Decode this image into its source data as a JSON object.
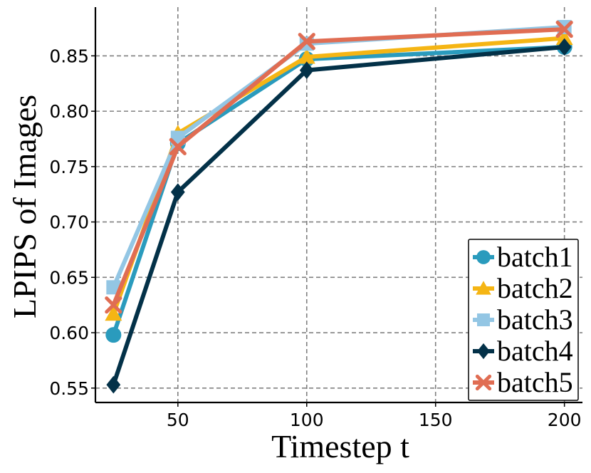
{
  "chart_data": {
    "type": "line",
    "xlabel": "Timestep t",
    "ylabel": "LPIPS of Images",
    "xlim": [
      18,
      207
    ],
    "ylim": [
      0.537,
      0.894
    ],
    "xticks": [
      50,
      100,
      150,
      200
    ],
    "yticks": [
      0.55,
      0.6,
      0.65,
      0.7,
      0.75,
      0.8,
      0.85
    ],
    "ytick_labels": [
      "0.55",
      "0.60",
      "0.65",
      "0.70",
      "0.75",
      "0.80",
      "0.85"
    ],
    "grid": true,
    "legend_position": "lower-right",
    "x": [
      25,
      50,
      100,
      200
    ],
    "series": [
      {
        "name": "batch1",
        "color": "#2a9bbd",
        "marker": "circle",
        "values": [
          0.598,
          0.771,
          0.847,
          0.858
        ]
      },
      {
        "name": "batch2",
        "color": "#f5b514",
        "marker": "triangle",
        "values": [
          0.617,
          0.78,
          0.849,
          0.866
        ]
      },
      {
        "name": "batch3",
        "color": "#93c6e4",
        "marker": "square",
        "values": [
          0.641,
          0.776,
          0.861,
          0.876
        ]
      },
      {
        "name": "batch4",
        "color": "#033148",
        "marker": "diamond",
        "values": [
          0.553,
          0.727,
          0.837,
          0.858
        ]
      },
      {
        "name": "batch5",
        "color": "#e06d53",
        "marker": "x",
        "values": [
          0.625,
          0.768,
          0.863,
          0.874
        ]
      }
    ]
  }
}
